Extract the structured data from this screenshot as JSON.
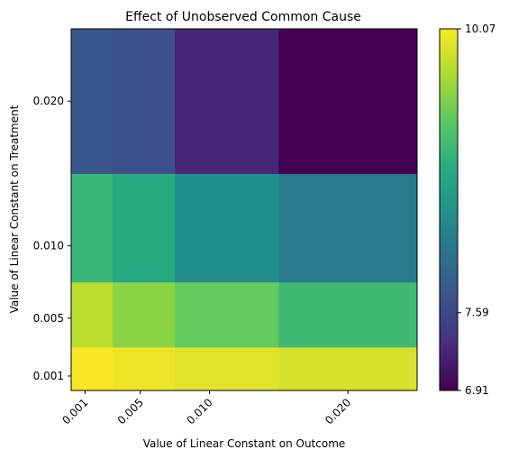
{
  "chart_data": {
    "type": "heatmap",
    "title": "Effect of Unobserved Common Cause",
    "xlabel": "Value of Linear Constant on Outcome",
    "ylabel": "Value of Linear Constant on Treatment",
    "x_ticks": [
      "0.001",
      "0.005",
      "0.010",
      "0.020"
    ],
    "y_ticks": [
      "0.020",
      "0.010",
      "0.005",
      "0.001"
    ],
    "x_edges": [
      0.0,
      0.003,
      0.0075,
      0.015,
      0.025
    ],
    "y_edges": [
      0.0,
      0.003,
      0.0075,
      0.015,
      0.025
    ],
    "x_centers": [
      0.001,
      0.005,
      0.01,
      0.02
    ],
    "y_centers": [
      0.001,
      0.005,
      0.01,
      0.02
    ],
    "rows_bottom_to_top": [
      {
        "y": 0.001,
        "values": [
          10.05,
          10.0,
          9.92,
          9.88
        ]
      },
      {
        "y": 0.005,
        "values": [
          9.75,
          9.5,
          9.3,
          9.05
        ]
      },
      {
        "y": 0.01,
        "values": [
          9.0,
          8.82,
          8.45,
          8.2
        ]
      },
      {
        "y": 0.02,
        "values": [
          7.75,
          7.68,
          7.25,
          6.91
        ]
      }
    ],
    "colorbar": {
      "colormap": "viridis",
      "min": 6.91,
      "max": 10.07,
      "tick_labels": [
        "10.07",
        "7.59",
        "6.91"
      ],
      "tick_values": [
        10.07,
        7.59,
        6.91
      ]
    },
    "grid": false
  }
}
